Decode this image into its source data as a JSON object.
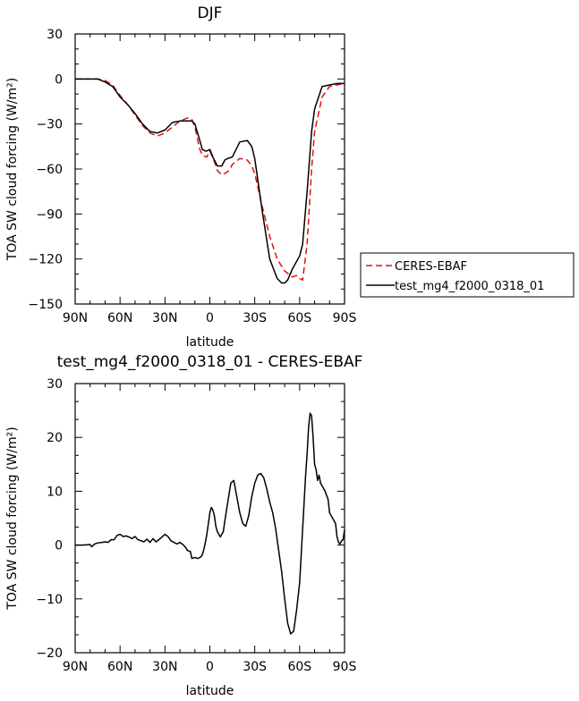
{
  "chart_data": [
    {
      "type": "line",
      "title": "DJF",
      "xlabel": "latitude",
      "ylabel": "TOA SW cloud forcing (W/m²)",
      "x_ticks": [
        {
          "lat": 90,
          "label": "90N"
        },
        {
          "lat": 60,
          "label": "60N"
        },
        {
          "lat": 30,
          "label": "30N"
        },
        {
          "lat": 0,
          "label": "0"
        },
        {
          "lat": -30,
          "label": "30S"
        },
        {
          "lat": -60,
          "label": "60S"
        },
        {
          "lat": -90,
          "label": "90S"
        }
      ],
      "xlim": [
        90,
        -90
      ],
      "ylim": [
        -150,
        30
      ],
      "y_ticks": [
        30,
        0,
        -30,
        -60,
        -90,
        -120,
        -150
      ],
      "grid": false,
      "legend_position": "right",
      "series": [
        {
          "name": "CERES-EBAF",
          "color": "#e01010",
          "dash": "dashed",
          "x": [
            90,
            85,
            80,
            75,
            70,
            65,
            60,
            55,
            50,
            45,
            40,
            35,
            30,
            25,
            20,
            15,
            12,
            10,
            7,
            5,
            2,
            0,
            -3,
            -5,
            -8,
            -10,
            -13,
            -15,
            -20,
            -25,
            -28,
            -30,
            -35,
            -40,
            -45,
            -50,
            -55,
            -58,
            -60,
            -62,
            -65,
            -68,
            -70,
            -75,
            -80,
            -85,
            -90
          ],
          "y": [
            0,
            0,
            0,
            0,
            -1,
            -4,
            -11,
            -17,
            -24,
            -31,
            -36,
            -38,
            -36,
            -32,
            -28,
            -26,
            -27,
            -32,
            -46,
            -51,
            -52,
            -48,
            -55,
            -61,
            -64,
            -63,
            -61,
            -57,
            -53,
            -54,
            -58,
            -63,
            -85,
            -105,
            -120,
            -128,
            -132,
            -131,
            -133,
            -134,
            -110,
            -60,
            -35,
            -12,
            -5,
            -4,
            -3
          ]
        },
        {
          "name": "test_mg4_f2000_0318_01",
          "color": "#000000",
          "dash": "solid",
          "x": [
            90,
            85,
            80,
            75,
            70,
            65,
            60,
            55,
            50,
            45,
            40,
            35,
            30,
            25,
            20,
            15,
            12,
            10,
            7,
            5,
            3,
            2,
            0,
            -2,
            -5,
            -8,
            -10,
            -12,
            -15,
            -20,
            -25,
            -28,
            -30,
            -35,
            -40,
            -45,
            -48,
            -50,
            -52,
            -55,
            -60,
            -62,
            -65,
            -68,
            -70,
            -75,
            -80,
            -85,
            -90
          ],
          "y": [
            0,
            0,
            0,
            0,
            -2,
            -5,
            -12,
            -17,
            -23,
            -30,
            -35,
            -36,
            -34,
            -29,
            -28,
            -28,
            -28,
            -30,
            -40,
            -47,
            -48,
            -48,
            -47,
            -52,
            -58,
            -58,
            -54,
            -53,
            -52,
            -42,
            -41,
            -45,
            -53,
            -88,
            -120,
            -133,
            -136,
            -136,
            -134,
            -127,
            -118,
            -110,
            -75,
            -35,
            -20,
            -5,
            -4,
            -3,
            -3
          ]
        }
      ]
    },
    {
      "type": "line",
      "title": "test_mg4_f2000_0318_01 - CERES-EBAF",
      "xlabel": "latitude",
      "ylabel": "TOA SW cloud forcing (W/m²)",
      "x_ticks": [
        {
          "lat": 90,
          "label": "90N"
        },
        {
          "lat": 60,
          "label": "60N"
        },
        {
          "lat": 30,
          "label": "30N"
        },
        {
          "lat": 0,
          "label": "0"
        },
        {
          "lat": -30,
          "label": "30S"
        },
        {
          "lat": -60,
          "label": "60S"
        },
        {
          "lat": -90,
          "label": "90S"
        }
      ],
      "xlim": [
        90,
        -90
      ],
      "ylim": [
        -20,
        30
      ],
      "y_ticks": [
        30,
        20,
        10,
        0,
        -10,
        -20
      ],
      "grid": false,
      "series": [
        {
          "color": "#000000",
          "dash": "solid",
          "x": [
            90,
            85,
            80,
            79,
            77,
            75,
            72,
            70,
            68,
            66,
            64,
            62,
            60,
            58,
            56,
            54,
            52,
            50,
            48,
            46,
            44,
            42,
            40,
            38,
            36,
            34,
            32,
            30,
            28,
            26,
            24,
            22,
            20,
            18,
            16,
            15,
            13,
            12,
            10,
            8,
            6,
            5,
            4,
            3,
            2,
            1,
            0,
            -1,
            -2,
            -3,
            -4,
            -5,
            -7,
            -9,
            -10,
            -12,
            -14,
            -16,
            -18,
            -20,
            -22,
            -24,
            -26,
            -28,
            -30,
            -32,
            -34,
            -36,
            -38,
            -40,
            -42,
            -44,
            -46,
            -48,
            -50,
            -52,
            -54,
            -56,
            -58,
            -60,
            -61,
            -62,
            -63,
            -64,
            -65,
            -66,
            -67,
            -68,
            -69,
            -70,
            -71,
            -72,
            -73,
            -74,
            -75,
            -77,
            -79,
            -80,
            -82,
            -84,
            -85,
            -86,
            -87,
            -88,
            -89,
            -90
          ],
          "y": [
            0,
            0,
            0.1,
            -0.3,
            0.2,
            0.4,
            0.5,
            0.6,
            0.5,
            1.0,
            1.0,
            1.8,
            2.0,
            1.6,
            1.7,
            1.5,
            1.2,
            1.6,
            1.0,
            0.8,
            0.6,
            1.1,
            0.5,
            1.2,
            0.6,
            1.0,
            1.5,
            2.0,
            1.6,
            0.8,
            0.5,
            0.2,
            0.5,
            0.1,
            -0.5,
            -1.0,
            -1.2,
            -2.5,
            -2.3,
            -2.5,
            -2.2,
            -1.8,
            -0.8,
            0.5,
            2.0,
            4.0,
            6.0,
            7.0,
            6.5,
            5.5,
            3.5,
            2.5,
            1.5,
            2.5,
            4.5,
            8.0,
            11.5,
            12.0,
            9.0,
            6.0,
            4.0,
            3.5,
            5.5,
            9.0,
            11.5,
            13.0,
            13.3,
            12.5,
            10.5,
            8.0,
            6.0,
            3.0,
            -1.0,
            -5.0,
            -10.0,
            -14.5,
            -16.5,
            -16.0,
            -12.0,
            -7.0,
            -2.0,
            3.0,
            8.0,
            13.0,
            17.0,
            22.0,
            24.5,
            24.0,
            20.0,
            15.0,
            14.0,
            12.0,
            13.0,
            11.5,
            11.0,
            10.0,
            8.5,
            6.0,
            5.0,
            4.0,
            1.5,
            0.5,
            0.2,
            0.8,
            1.0,
            2.8
          ]
        }
      ]
    }
  ]
}
